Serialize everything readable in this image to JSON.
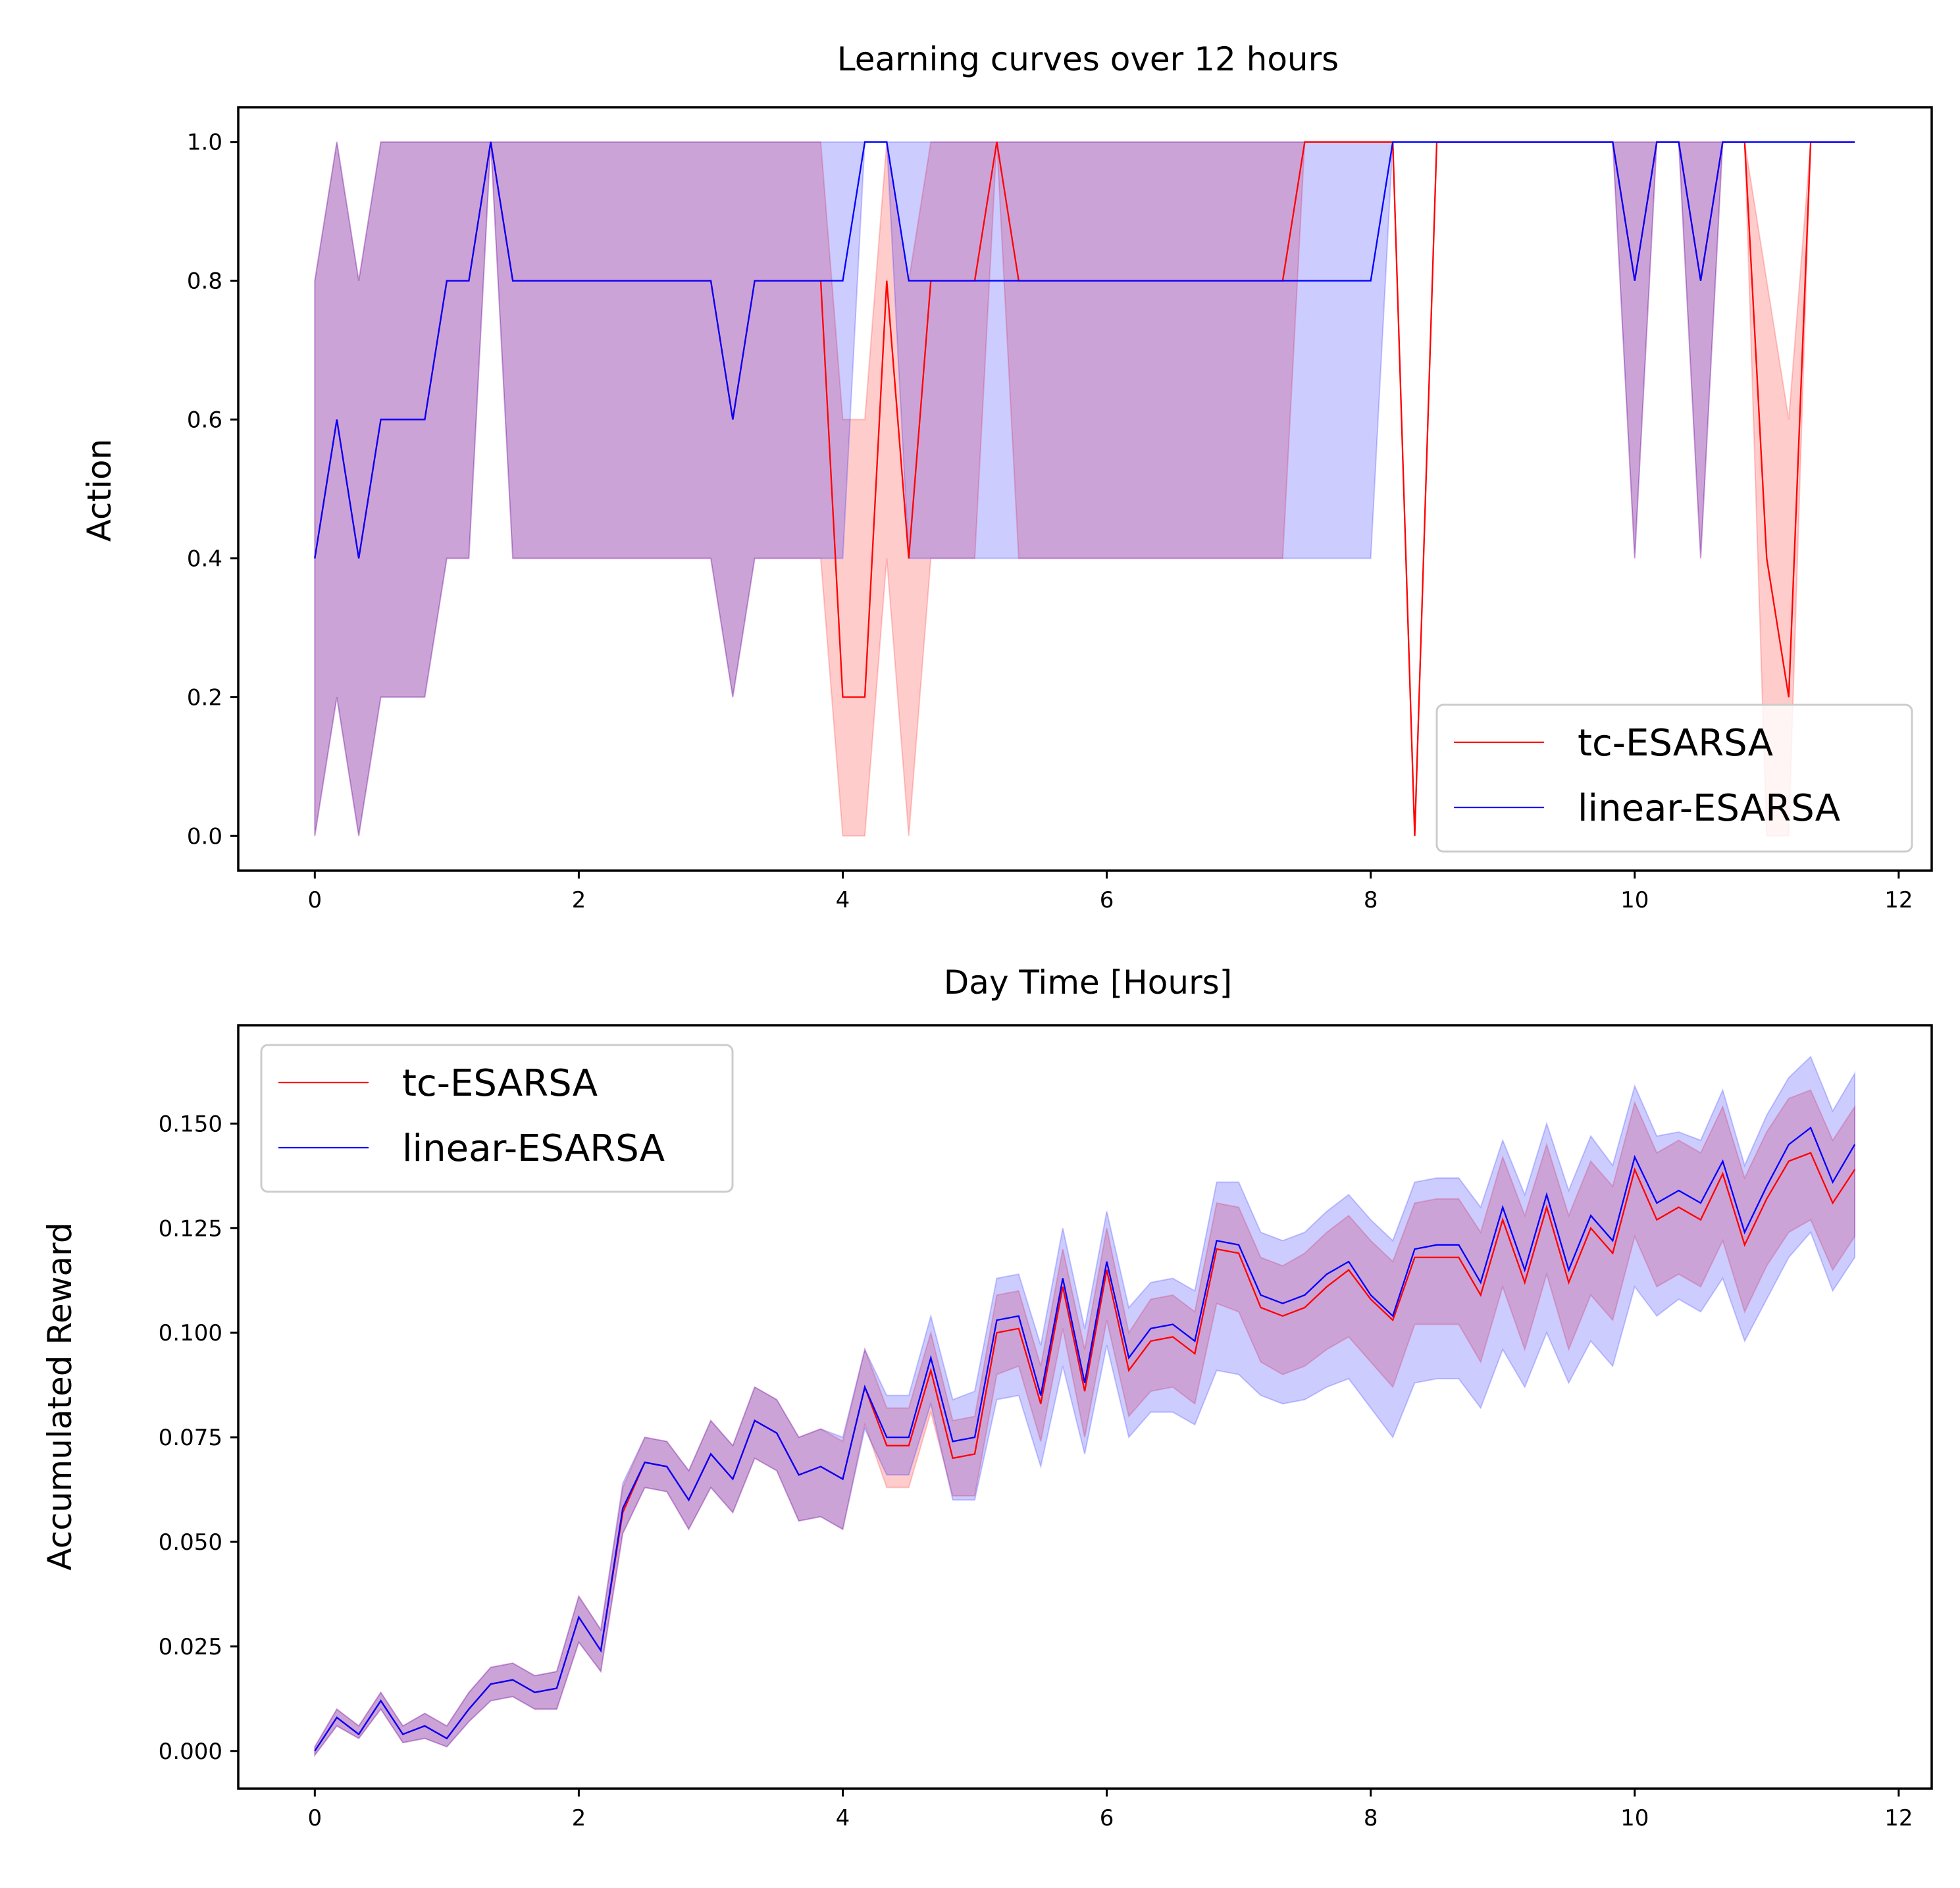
{
  "chart_data": [
    {
      "type": "line",
      "title": "Learning curves over 12 hours",
      "xlabel": "Day Time [Hours]",
      "ylabel": "Action",
      "xlim": [
        -0.58,
        12.25
      ],
      "ylim": [
        -0.05,
        1.05
      ],
      "xticks": [
        0,
        2,
        4,
        6,
        8,
        10,
        12
      ],
      "yticks": [
        0.0,
        0.2,
        0.4,
        0.6,
        0.8,
        1.0
      ],
      "xtick_labels": [
        "0",
        "2",
        "4",
        "6",
        "8",
        "10",
        "12"
      ],
      "ytick_labels": [
        "0.0",
        "0.2",
        "0.4",
        "0.6",
        "0.8",
        "1.0"
      ],
      "grid": false,
      "legend": "lower-right",
      "series": [
        {
          "name": "tc-ESARSA",
          "color": "#ff0000",
          "band_color": "#ff0000",
          "x": [
            0,
            0.167,
            0.333,
            0.5,
            0.833,
            1.0,
            1.167,
            1.333,
            1.5,
            3.0,
            3.167,
            3.333,
            3.833,
            4.0,
            4.167,
            4.333,
            4.5,
            4.667,
            5.0,
            5.167,
            5.333,
            7.333,
            7.5,
            8.167,
            8.333,
            8.5,
            9.833,
            10.0,
            10.167,
            10.333,
            10.5,
            10.667,
            10.833,
            11.0,
            11.167,
            11.333,
            11.667
          ],
          "values": [
            0.4,
            0.6,
            0.4,
            0.6,
            0.6,
            0.8,
            0.8,
            1.0,
            0.8,
            0.8,
            0.6,
            0.8,
            0.8,
            0.2,
            0.2,
            0.8,
            0.4,
            0.8,
            0.8,
            1.0,
            0.8,
            0.8,
            1.0,
            1.0,
            0.0,
            1.0,
            1.0,
            0.8,
            1.0,
            1.0,
            0.8,
            1.0,
            1.0,
            0.4,
            0.2,
            1.0,
            1.0
          ],
          "lower": [
            0.0,
            0.2,
            0.0,
            0.2,
            0.2,
            0.4,
            0.4,
            1.0,
            0.4,
            0.4,
            0.2,
            0.4,
            0.4,
            0.0,
            0.0,
            0.4,
            0.0,
            0.4,
            0.4,
            1.0,
            0.4,
            0.4,
            1.0,
            1.0,
            0.0,
            1.0,
            1.0,
            0.4,
            1.0,
            1.0,
            0.4,
            1.0,
            1.0,
            0.0,
            0.0,
            1.0,
            1.0
          ],
          "upper": [
            0.8,
            1.0,
            0.8,
            1.0,
            1.0,
            1.0,
            1.0,
            1.0,
            1.0,
            1.0,
            1.0,
            1.0,
            1.0,
            0.6,
            0.6,
            1.0,
            0.8,
            1.0,
            1.0,
            1.0,
            1.0,
            1.0,
            1.0,
            1.0,
            0.0,
            1.0,
            1.0,
            1.0,
            1.0,
            1.0,
            1.0,
            1.0,
            1.0,
            0.8,
            0.6,
            1.0,
            1.0
          ]
        },
        {
          "name": "linear-ESARSA",
          "color": "#0000ff",
          "band_color": "#0000ff",
          "x": [
            0,
            0.167,
            0.333,
            0.5,
            0.833,
            1.0,
            1.167,
            1.333,
            1.5,
            3.0,
            3.167,
            3.333,
            3.833,
            4.0,
            4.167,
            4.333,
            4.5,
            8.0,
            8.167,
            9.833,
            10.0,
            10.167,
            10.333,
            10.5,
            10.667,
            11.667
          ],
          "values": [
            0.4,
            0.6,
            0.4,
            0.6,
            0.6,
            0.8,
            0.8,
            1.0,
            0.8,
            0.8,
            0.6,
            0.8,
            0.8,
            0.8,
            1.0,
            1.0,
            0.8,
            0.8,
            1.0,
            1.0,
            0.8,
            1.0,
            1.0,
            0.8,
            1.0,
            1.0
          ],
          "lower": [
            0.0,
            0.2,
            0.0,
            0.2,
            0.2,
            0.4,
            0.4,
            1.0,
            0.4,
            0.4,
            0.2,
            0.4,
            0.4,
            0.4,
            1.0,
            1.0,
            0.4,
            0.4,
            1.0,
            1.0,
            0.4,
            1.0,
            1.0,
            0.4,
            1.0,
            1.0
          ],
          "upper": [
            0.8,
            1.0,
            0.8,
            1.0,
            1.0,
            1.0,
            1.0,
            1.0,
            1.0,
            1.0,
            1.0,
            1.0,
            1.0,
            1.0,
            1.0,
            1.0,
            1.0,
            1.0,
            1.0,
            1.0,
            1.0,
            1.0,
            1.0,
            1.0,
            1.0,
            1.0
          ]
        }
      ]
    },
    {
      "type": "line",
      "title": "",
      "xlabel": "",
      "ylabel": "Accumulated Reward",
      "xlim": [
        -0.58,
        12.25
      ],
      "ylim": [
        -0.009,
        0.1735
      ],
      "xticks": [
        0,
        2,
        4,
        6,
        8,
        10,
        12
      ],
      "yticks": [
        0.0,
        0.025,
        0.05,
        0.075,
        0.1,
        0.125,
        0.15
      ],
      "xtick_labels": [
        "0",
        "2",
        "4",
        "6",
        "8",
        "10",
        "12"
      ],
      "ytick_labels": [
        "0.000",
        "0.025",
        "0.050",
        "0.075",
        "0.100",
        "0.125",
        "0.150"
      ],
      "grid": false,
      "legend": "upper-left",
      "x": [
        0,
        0.167,
        0.333,
        0.5,
        0.667,
        0.833,
        1.0,
        1.167,
        1.333,
        1.5,
        1.667,
        1.833,
        2.0,
        2.167,
        2.333,
        2.5,
        2.667,
        2.833,
        3.0,
        3.167,
        3.333,
        3.5,
        3.667,
        3.833,
        4.0,
        4.167,
        4.333,
        4.5,
        4.667,
        4.833,
        5.0,
        5.167,
        5.333,
        5.5,
        5.667,
        5.833,
        6.0,
        6.167,
        6.333,
        6.5,
        6.667,
        6.833,
        7.0,
        7.167,
        7.333,
        7.5,
        7.667,
        7.833,
        8.0,
        8.167,
        8.333,
        8.5,
        8.667,
        8.833,
        9.0,
        9.167,
        9.333,
        9.5,
        9.667,
        9.833,
        10.0,
        10.167,
        10.333,
        10.5,
        10.667,
        10.833,
        11.0,
        11.167,
        11.333,
        11.5,
        11.667
      ],
      "series": [
        {
          "name": "tc-ESARSA",
          "color": "#ff0000",
          "band_color": "#ff0000",
          "values": [
            0.0,
            0.008,
            0.004,
            0.012,
            0.004,
            0.006,
            0.003,
            0.01,
            0.016,
            0.017,
            0.014,
            0.015,
            0.032,
            0.024,
            0.057,
            0.069,
            0.068,
            0.06,
            0.071,
            0.065,
            0.079,
            0.076,
            0.066,
            0.068,
            0.065,
            0.087,
            0.073,
            0.073,
            0.091,
            0.07,
            0.071,
            0.1,
            0.101,
            0.083,
            0.111,
            0.086,
            0.115,
            0.091,
            0.098,
            0.099,
            0.095,
            0.12,
            0.119,
            0.106,
            0.104,
            0.106,
            0.111,
            0.115,
            0.108,
            0.103,
            0.118,
            0.118,
            0.118,
            0.109,
            0.127,
            0.112,
            0.13,
            0.112,
            0.125,
            0.119,
            0.139,
            0.127,
            0.13,
            0.127,
            0.138,
            0.121,
            0.132,
            0.141,
            0.143,
            0.131,
            0.139
          ],
          "lower": [
            -0.001,
            0.006,
            0.003,
            0.01,
            0.002,
            0.003,
            0.001,
            0.007,
            0.012,
            0.013,
            0.01,
            0.01,
            0.026,
            0.019,
            0.052,
            0.063,
            0.062,
            0.053,
            0.063,
            0.057,
            0.07,
            0.067,
            0.055,
            0.056,
            0.053,
            0.078,
            0.063,
            0.063,
            0.081,
            0.061,
            0.061,
            0.09,
            0.092,
            0.074,
            0.101,
            0.075,
            0.103,
            0.08,
            0.086,
            0.087,
            0.083,
            0.107,
            0.105,
            0.093,
            0.09,
            0.092,
            0.096,
            0.099,
            0.093,
            0.087,
            0.102,
            0.102,
            0.102,
            0.093,
            0.111,
            0.096,
            0.114,
            0.096,
            0.109,
            0.103,
            0.123,
            0.111,
            0.114,
            0.111,
            0.122,
            0.105,
            0.116,
            0.124,
            0.127,
            0.115,
            0.123
          ],
          "upper": [
            0.001,
            0.01,
            0.006,
            0.014,
            0.006,
            0.009,
            0.006,
            0.014,
            0.02,
            0.021,
            0.018,
            0.019,
            0.037,
            0.029,
            0.063,
            0.075,
            0.074,
            0.067,
            0.079,
            0.073,
            0.087,
            0.084,
            0.075,
            0.077,
            0.074,
            0.096,
            0.082,
            0.082,
            0.1,
            0.079,
            0.08,
            0.109,
            0.11,
            0.092,
            0.12,
            0.096,
            0.125,
            0.1,
            0.108,
            0.109,
            0.105,
            0.131,
            0.13,
            0.118,
            0.116,
            0.119,
            0.124,
            0.128,
            0.122,
            0.117,
            0.131,
            0.132,
            0.132,
            0.124,
            0.142,
            0.128,
            0.145,
            0.128,
            0.141,
            0.135,
            0.155,
            0.143,
            0.146,
            0.143,
            0.154,
            0.137,
            0.148,
            0.156,
            0.158,
            0.146,
            0.154
          ]
        },
        {
          "name": "linear-ESARSA",
          "color": "#0000ff",
          "band_color": "#0000ff",
          "values": [
            0.0,
            0.008,
            0.004,
            0.012,
            0.004,
            0.006,
            0.003,
            0.01,
            0.016,
            0.017,
            0.014,
            0.015,
            0.032,
            0.024,
            0.058,
            0.069,
            0.068,
            0.06,
            0.071,
            0.065,
            0.079,
            0.076,
            0.066,
            0.068,
            0.065,
            0.087,
            0.075,
            0.075,
            0.094,
            0.074,
            0.075,
            0.103,
            0.104,
            0.085,
            0.113,
            0.088,
            0.117,
            0.094,
            0.101,
            0.102,
            0.098,
            0.122,
            0.121,
            0.109,
            0.107,
            0.109,
            0.114,
            0.117,
            0.109,
            0.104,
            0.12,
            0.121,
            0.121,
            0.112,
            0.13,
            0.115,
            0.133,
            0.115,
            0.128,
            0.122,
            0.142,
            0.131,
            0.134,
            0.131,
            0.141,
            0.124,
            0.135,
            0.145,
            0.149,
            0.136,
            0.145
          ],
          "lower": [
            -0.001,
            0.006,
            0.003,
            0.01,
            0.002,
            0.003,
            0.001,
            0.007,
            0.012,
            0.013,
            0.01,
            0.01,
            0.026,
            0.019,
            0.052,
            0.063,
            0.062,
            0.053,
            0.063,
            0.057,
            0.07,
            0.067,
            0.055,
            0.056,
            0.053,
            0.077,
            0.066,
            0.066,
            0.083,
            0.06,
            0.06,
            0.084,
            0.085,
            0.068,
            0.092,
            0.071,
            0.097,
            0.075,
            0.081,
            0.081,
            0.078,
            0.091,
            0.09,
            0.085,
            0.083,
            0.084,
            0.087,
            0.089,
            0.082,
            0.075,
            0.088,
            0.089,
            0.089,
            0.082,
            0.096,
            0.087,
            0.1,
            0.088,
            0.098,
            0.092,
            0.111,
            0.104,
            0.108,
            0.105,
            0.113,
            0.098,
            0.108,
            0.118,
            0.124,
            0.11,
            0.118
          ],
          "upper": [
            0.001,
            0.01,
            0.006,
            0.014,
            0.006,
            0.009,
            0.006,
            0.014,
            0.02,
            0.021,
            0.018,
            0.019,
            0.037,
            0.029,
            0.064,
            0.075,
            0.074,
            0.067,
            0.079,
            0.073,
            0.087,
            0.084,
            0.075,
            0.077,
            0.075,
            0.096,
            0.085,
            0.085,
            0.104,
            0.084,
            0.086,
            0.113,
            0.114,
            0.097,
            0.125,
            0.101,
            0.129,
            0.106,
            0.112,
            0.113,
            0.11,
            0.136,
            0.136,
            0.124,
            0.122,
            0.124,
            0.129,
            0.133,
            0.127,
            0.122,
            0.136,
            0.137,
            0.137,
            0.13,
            0.146,
            0.133,
            0.15,
            0.134,
            0.147,
            0.14,
            0.159,
            0.147,
            0.148,
            0.146,
            0.158,
            0.14,
            0.152,
            0.161,
            0.166,
            0.153,
            0.162
          ]
        }
      ]
    }
  ]
}
